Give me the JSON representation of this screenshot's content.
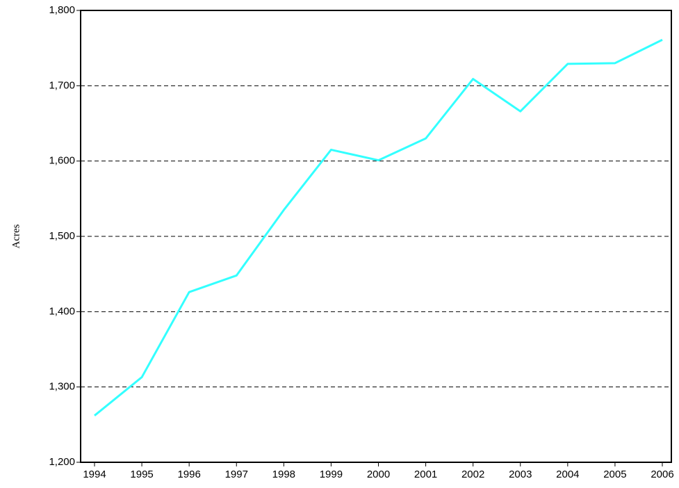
{
  "chart_data": {
    "type": "line",
    "y_label": "Acres",
    "categories": [
      "1994",
      "1995",
      "1996",
      "1997",
      "1998",
      "1999",
      "2000",
      "2001",
      "2002",
      "2003",
      "2004",
      "2005",
      "2006"
    ],
    "values": [
      1262,
      1313,
      1426,
      1448,
      1535,
      1615,
      1601,
      1630,
      1709,
      1666,
      1729,
      1730,
      1761
    ],
    "color": "#33ffff",
    "ylim": [
      1200,
      1800
    ],
    "yticks": [
      {
        "value": 1200,
        "label": "1,200"
      },
      {
        "value": 1300,
        "label": "1,300"
      },
      {
        "value": 1400,
        "label": "1,400"
      },
      {
        "value": 1500,
        "label": "1,500"
      },
      {
        "value": 1600,
        "label": "1,600"
      },
      {
        "value": 1700,
        "label": "1,700"
      },
      {
        "value": 1800,
        "label": "1,800"
      }
    ],
    "grid": true
  }
}
